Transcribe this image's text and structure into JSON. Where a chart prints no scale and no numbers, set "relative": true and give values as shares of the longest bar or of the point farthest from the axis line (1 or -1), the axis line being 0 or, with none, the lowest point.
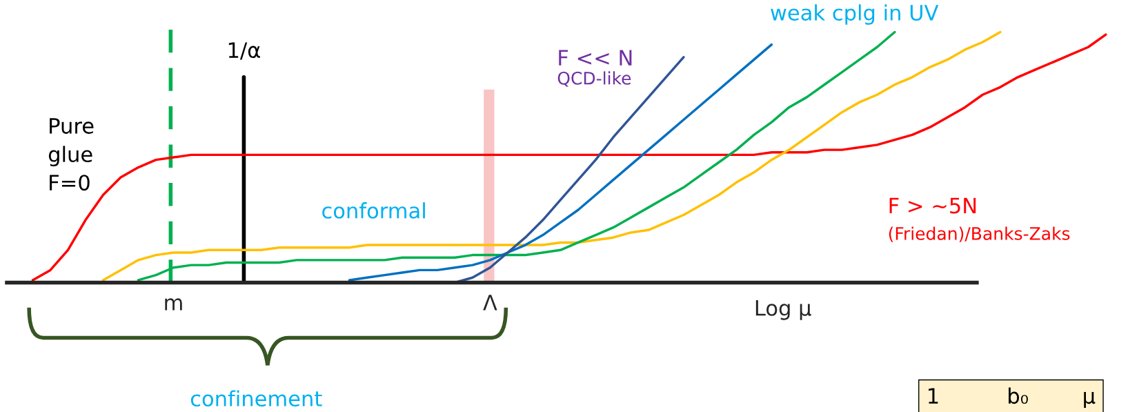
{
  "chart_data": {
    "type": "line",
    "relative": true,
    "xlabel": "Log μ",
    "categories": [
      null,
      null,
      null,
      null,
      null,
      null,
      null,
      null,
      "m",
      null,
      null,
      null,
      null,
      null,
      null,
      null,
      null,
      null,
      null,
      null,
      null,
      null,
      null,
      null,
      null,
      null,
      "Λ",
      null,
      null,
      null,
      null,
      null,
      null,
      null,
      null,
      null,
      null,
      null,
      null,
      null,
      null,
      null,
      null,
      null,
      null,
      null,
      null,
      null,
      null,
      null,
      null,
      null,
      null,
      null,
      null,
      null,
      null,
      null,
      null,
      null,
      null,
      null
    ],
    "series": [
      {
        "color": "#ff0000",
        "values": [
          0.01,
          0.05,
          0.13,
          0.25,
          0.35,
          0.42,
          0.46,
          0.49,
          0.5,
          0.51,
          0.51,
          0.51,
          0.51,
          0.51,
          0.51,
          0.51,
          0.51,
          0.51,
          0.51,
          0.51,
          0.51,
          0.51,
          0.51,
          0.51,
          0.51,
          0.51,
          0.51,
          0.51,
          0.51,
          0.51,
          0.51,
          0.51,
          0.51,
          0.51,
          0.51,
          0.51,
          0.51,
          0.51,
          0.51,
          0.51,
          0.51,
          0.51,
          0.52,
          0.52,
          0.52,
          0.53,
          0.53,
          0.54,
          0.55,
          0.57,
          0.59,
          0.62,
          0.66,
          0.7,
          0.75,
          0.78,
          0.82,
          0.85,
          0.88,
          0.91,
          0.94,
          0.99
        ]
      },
      {
        "color": "#ffc000",
        "values": [
          null,
          null,
          null,
          null,
          0.01,
          0.05,
          0.09,
          0.11,
          0.12,
          0.12,
          0.13,
          0.13,
          0.13,
          0.13,
          0.14,
          0.14,
          0.14,
          0.14,
          0.14,
          0.15,
          0.15,
          0.15,
          0.15,
          0.15,
          0.15,
          0.15,
          0.15,
          0.15,
          0.15,
          0.15,
          0.16,
          0.16,
          0.17,
          0.18,
          0.2,
          0.21,
          0.24,
          0.27,
          0.31,
          0.35,
          0.4,
          0.44,
          0.49,
          0.53,
          0.58,
          0.63,
          0.68,
          0.72,
          0.75,
          0.79,
          0.82,
          0.86,
          0.89,
          0.93,
          0.96,
          1.0,
          null,
          null,
          null,
          null,
          null,
          null
        ]
      },
      {
        "color": "#00b050",
        "values": [
          null,
          null,
          null,
          null,
          null,
          null,
          0.01,
          0.03,
          0.06,
          0.07,
          0.07,
          0.08,
          0.08,
          0.08,
          0.08,
          0.09,
          0.09,
          0.09,
          0.09,
          0.09,
          0.09,
          0.1,
          0.1,
          0.1,
          0.1,
          0.11,
          0.11,
          0.11,
          0.11,
          0.12,
          0.13,
          0.16,
          0.19,
          0.22,
          0.26,
          0.3,
          0.34,
          0.38,
          0.43,
          0.48,
          0.53,
          0.59,
          0.64,
          0.7,
          0.74,
          0.79,
          0.84,
          0.89,
          0.94,
          1.0,
          null,
          null,
          null,
          null,
          null,
          null,
          null,
          null,
          null,
          null,
          null,
          null
        ]
      },
      {
        "color": "#0070c0",
        "values": [
          null,
          null,
          null,
          null,
          null,
          null,
          null,
          null,
          null,
          null,
          null,
          null,
          null,
          null,
          null,
          null,
          null,
          null,
          0.01,
          0.02,
          0.03,
          0.04,
          0.05,
          0.05,
          0.06,
          0.07,
          0.09,
          0.12,
          0.15,
          0.19,
          0.24,
          0.29,
          0.35,
          0.41,
          0.47,
          0.53,
          0.59,
          0.65,
          0.71,
          0.77,
          0.83,
          0.89,
          0.95,
          null,
          null,
          null,
          null,
          null,
          null,
          null,
          null,
          null,
          null,
          null,
          null,
          null,
          null,
          null,
          null,
          null,
          null,
          null
        ]
      },
      {
        "color": "#2f5597",
        "values": [
          null,
          null,
          null,
          null,
          null,
          null,
          null,
          null,
          null,
          null,
          null,
          null,
          null,
          null,
          null,
          null,
          null,
          null,
          null,
          null,
          null,
          null,
          null,
          null,
          0,
          0.02,
          0.06,
          0.12,
          0.18,
          0.25,
          0.33,
          0.41,
          0.49,
          0.58,
          0.66,
          0.74,
          0.82,
          0.9,
          null,
          null,
          null,
          null,
          null,
          null,
          null,
          null,
          null,
          null,
          null,
          null,
          null,
          null,
          null,
          null,
          null,
          null,
          null,
          null,
          null,
          null,
          null,
          null
        ]
      }
    ],
    "ref_lines": [
      {
        "axis": "x",
        "value": "m",
        "color": "#00b050",
        "line_style": "dashed"
      },
      {
        "axis": "x",
        "label": "1/α",
        "color": "#000000"
      }
    ],
    "bands": [
      {
        "axis": "x",
        "from": "Λ",
        "to": "Λ",
        "color": "#f9c4c4"
      }
    ],
    "annotations": [
      "Pure\nglue\nF=0",
      "conformal",
      "F << N",
      "QCD-like",
      "weak cplg in UV",
      "F > ~5N",
      "(Friedan)/Banks-Zaks",
      "confinement",
      "1          b₀        μ"
    ]
  }
}
